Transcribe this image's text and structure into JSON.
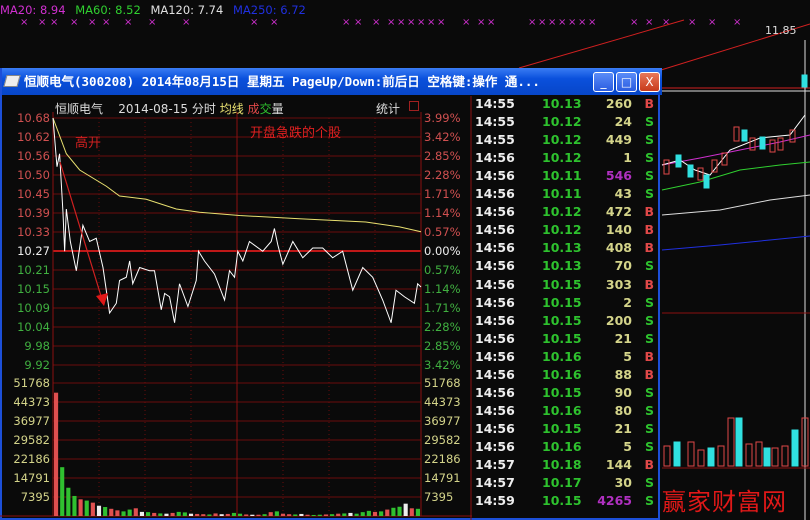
{
  "ma_legend": [
    {
      "label": "MA20: 8.94",
      "color": "#d030d0"
    },
    {
      "label": "MA60: 8.52",
      "color": "#30d030"
    },
    {
      "label": "MA120: 7.74",
      "color": "#e0e0e0"
    },
    {
      "label": "MA250: 6.72",
      "color": "#2030e0"
    }
  ],
  "background_chart": {
    "price_label": "11.85"
  },
  "window": {
    "title": "恒顺电气(300208) 2014年08月15日 星期五 PageUp/Down:前后日 空格键:操作 通...",
    "minimize": "_",
    "maximize": "□",
    "close": "X"
  },
  "chart_header": {
    "name": "恒顺电气",
    "date": "2014-08-15",
    "mode": "分时",
    "avg_label": "均线",
    "vol_label_1": "成",
    "vol_label_2": "交",
    "vol_label_3": "量",
    "stats": "统计"
  },
  "annotation": "高开",
  "overlay_note": "开盘急跌的个股",
  "watermark": "赢家财富网",
  "chart_data": {
    "type": "line",
    "prev_close": 10.27,
    "price_ticks": [
      "10.68",
      "10.62",
      "10.56",
      "10.50",
      "10.45",
      "10.39",
      "10.33",
      "10.27",
      "10.21",
      "10.15",
      "10.09",
      "10.04",
      "9.98",
      "9.92"
    ],
    "pct_ticks": [
      "3.99%",
      "3.42%",
      "2.85%",
      "2.28%",
      "1.71%",
      "1.14%",
      "0.57%",
      "0.00%",
      "0.57%",
      "1.14%",
      "1.71%",
      "2.28%",
      "2.85%",
      "3.42%"
    ],
    "ylim": [
      9.92,
      10.68
    ],
    "xlim_minutes": [
      0,
      240
    ],
    "price_series": [
      [
        0,
        10.68
      ],
      [
        2.6,
        10.53
      ],
      [
        4.3,
        10.57
      ],
      [
        6.5,
        10.39
      ],
      [
        7.6,
        10.27
      ],
      [
        8.7,
        10.4
      ],
      [
        11.3,
        10.3
      ],
      [
        15.2,
        10.21
      ],
      [
        19.5,
        10.35
      ],
      [
        23.9,
        10.3
      ],
      [
        28.2,
        10.31
      ],
      [
        32.6,
        10.22
      ],
      [
        36.9,
        10.08
      ],
      [
        41.3,
        10.11
      ],
      [
        43.4,
        10.18
      ],
      [
        47.8,
        10.19
      ],
      [
        50,
        10.24
      ],
      [
        52,
        10.17
      ],
      [
        56.5,
        10.22
      ],
      [
        63,
        10.21
      ],
      [
        66.2,
        10.21
      ],
      [
        70.6,
        10.09
      ],
      [
        72.8,
        10.14
      ],
      [
        76,
        10.13
      ],
      [
        79.3,
        10.05
      ],
      [
        82.5,
        10.17
      ],
      [
        88,
        10.1
      ],
      [
        93.4,
        10.18
      ],
      [
        94.9,
        10.27
      ],
      [
        98.8,
        10.24
      ],
      [
        105.3,
        10.2
      ],
      [
        111.9,
        10.12
      ],
      [
        115.1,
        10.21
      ],
      [
        118.4,
        10.19
      ],
      [
        120.5,
        10.27
      ],
      [
        123.8,
        10.24
      ],
      [
        128.1,
        10.3
      ],
      [
        136.8,
        10.27
      ],
      [
        142.3,
        10.3
      ],
      [
        144.4,
        10.34
      ],
      [
        146.6,
        10.29
      ],
      [
        149.9,
        10.23
      ],
      [
        156.4,
        10.3
      ],
      [
        162.9,
        10.25
      ],
      [
        169.4,
        10.28
      ],
      [
        175.9,
        10.28
      ],
      [
        182.4,
        10.25
      ],
      [
        188.9,
        10.27
      ],
      [
        195.5,
        10.15
      ],
      [
        202,
        10.22
      ],
      [
        208.5,
        10.19
      ],
      [
        215,
        10.12
      ],
      [
        220.5,
        10.05
      ],
      [
        223.7,
        10.15
      ],
      [
        229.2,
        10.13
      ],
      [
        235.7,
        10.11
      ],
      [
        237.8,
        10.17
      ],
      [
        240,
        10.16
      ]
    ],
    "avg_series": [
      [
        0,
        10.68
      ],
      [
        8.7,
        10.57
      ],
      [
        17.4,
        10.52
      ],
      [
        34.8,
        10.47
      ],
      [
        43.4,
        10.44
      ],
      [
        60.8,
        10.43
      ],
      [
        80.4,
        10.4
      ],
      [
        95.6,
        10.39
      ],
      [
        121.6,
        10.38
      ],
      [
        160.7,
        10.37
      ],
      [
        204,
        10.36
      ],
      [
        226,
        10.345
      ],
      [
        240,
        10.33
      ]
    ],
    "volume_ticks": [
      "51768",
      "44373",
      "36977",
      "29582",
      "22186",
      "14791",
      "7395"
    ],
    "volume_max": 51768,
    "volume": [
      48000,
      19000,
      11000,
      7800,
      6500,
      6000,
      5200,
      4000,
      3500,
      2800,
      2200,
      1800,
      2500,
      3000,
      1600,
      1500,
      1200,
      1000,
      900,
      1200,
      1600,
      1400,
      900,
      800,
      700,
      600,
      1000,
      700,
      800,
      1200,
      900,
      600,
      500,
      500,
      700,
      1500,
      1800,
      900,
      700,
      600,
      800,
      500,
      400,
      500,
      600,
      700,
      900,
      1000,
      1200,
      900,
      1500,
      2000,
      1600,
      1800,
      2500,
      3200,
      3600,
      4800,
      3000,
      2800
    ],
    "volume_colors": [
      "r",
      "g",
      "g",
      "g",
      "r",
      "g",
      "r",
      "w",
      "g",
      "r",
      "r",
      "g",
      "g",
      "r",
      "w",
      "g",
      "r",
      "g",
      "w",
      "r",
      "g",
      "g",
      "w",
      "r",
      "r",
      "g",
      "r",
      "w",
      "r",
      "g",
      "g",
      "r",
      "w",
      "r",
      "g",
      "r",
      "g",
      "r",
      "r",
      "g",
      "w",
      "r",
      "g",
      "g",
      "r",
      "g",
      "r",
      "g",
      "w",
      "g",
      "g",
      "g",
      "r",
      "g",
      "r",
      "g",
      "g",
      "w",
      "r",
      "g"
    ],
    "arrow": "red arrow from open high down to early low"
  },
  "ticks": [
    {
      "time": "14:55",
      "price": "10.13",
      "vol": "260",
      "side": "B"
    },
    {
      "time": "14:55",
      "price": "10.12",
      "vol": "24",
      "side": "S"
    },
    {
      "time": "14:55",
      "price": "10.12",
      "vol": "449",
      "side": "S"
    },
    {
      "time": "14:56",
      "price": "10.12",
      "vol": "1",
      "side": "S"
    },
    {
      "time": "14:56",
      "price": "10.11",
      "vol": "546",
      "side": "S",
      "big": true
    },
    {
      "time": "14:56",
      "price": "10.11",
      "vol": "43",
      "side": "S"
    },
    {
      "time": "14:56",
      "price": "10.12",
      "vol": "472",
      "side": "B"
    },
    {
      "time": "14:56",
      "price": "10.12",
      "vol": "140",
      "side": "B"
    },
    {
      "time": "14:56",
      "price": "10.13",
      "vol": "408",
      "side": "B"
    },
    {
      "time": "14:56",
      "price": "10.13",
      "vol": "70",
      "side": "S"
    },
    {
      "time": "14:56",
      "price": "10.15",
      "vol": "303",
      "side": "B"
    },
    {
      "time": "14:56",
      "price": "10.15",
      "vol": "2",
      "side": "S"
    },
    {
      "time": "14:56",
      "price": "10.15",
      "vol": "200",
      "side": "S"
    },
    {
      "time": "14:56",
      "price": "10.15",
      "vol": "21",
      "side": "S"
    },
    {
      "time": "14:56",
      "price": "10.16",
      "vol": "5",
      "side": "B"
    },
    {
      "time": "14:56",
      "price": "10.16",
      "vol": "88",
      "side": "B"
    },
    {
      "time": "14:56",
      "price": "10.15",
      "vol": "90",
      "side": "S"
    },
    {
      "time": "14:56",
      "price": "10.16",
      "vol": "80",
      "side": "S"
    },
    {
      "time": "14:56",
      "price": "10.15",
      "vol": "21",
      "side": "S"
    },
    {
      "time": "14:56",
      "price": "10.16",
      "vol": "5",
      "side": "S"
    },
    {
      "time": "14:57",
      "price": "10.18",
      "vol": "144",
      "side": "B"
    },
    {
      "time": "14:57",
      "price": "10.17",
      "vol": "30",
      "side": "S"
    },
    {
      "time": "14:59",
      "price": "10.15",
      "vol": "4265",
      "side": "S",
      "big": true
    }
  ],
  "colors": {
    "buy": "#e04848",
    "sell": "#2ec22e",
    "grid": "#8a1010",
    "avg": "#e8e070",
    "price": "#ffffff",
    "big_vol": "#b030c0"
  }
}
